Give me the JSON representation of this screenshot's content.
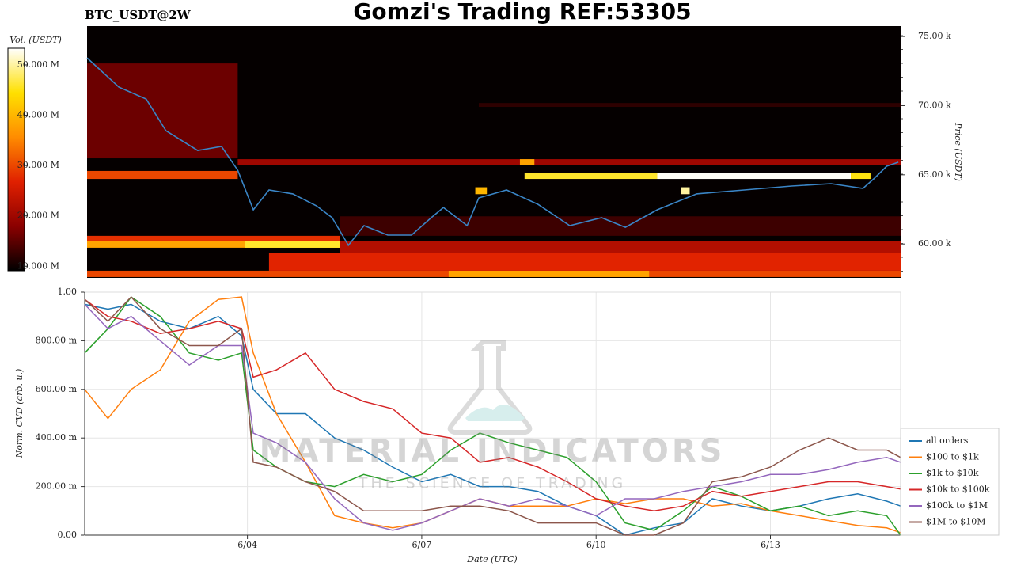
{
  "title": "Gomzi's Trading REF:53305",
  "watermark": {
    "brand": "MATERIAL INDICATORS",
    "tagline": "THE SCIENCE OF TRADING"
  },
  "chart_data": [
    {
      "type": "heatmap",
      "title": "BTC_USDT@2W",
      "ylabel": "Price (USDT)",
      "xlim": [
        1.2,
        15.24
      ],
      "ylim": [
        57550,
        75750
      ],
      "yticks": [
        {
          "value": 60000,
          "label": "60.00 k"
        },
        {
          "value": 65000,
          "label": "65.00 k"
        },
        {
          "value": 70000,
          "label": "70.00 k"
        },
        {
          "value": 75000,
          "label": "75.00 k"
        }
      ],
      "background": "#050000",
      "colorbar": {
        "label": "Vol. (USDT)",
        "lim": [
          9100000,
          53300000
        ],
        "ticks": [
          {
            "value": 10000000,
            "label": "10.000 M"
          },
          {
            "value": 20000000,
            "label": "20.000 M"
          },
          {
            "value": 30000000,
            "label": "30.000 M"
          },
          {
            "value": 40000000,
            "label": "40.000 M"
          },
          {
            "value": 50000000,
            "label": "50.000 M"
          }
        ],
        "colors": [
          "#000000",
          "#8b0000",
          "#e02000",
          "#ff8c00",
          "#ffe000",
          "#ffffff"
        ]
      },
      "cells": [
        {
          "x": [
            1.2,
            3.8
          ],
          "y": [
            66190,
            73055
          ],
          "value": 16000000
        },
        {
          "x": [
            5.57,
            15.24
          ],
          "y": [
            60590,
            62000
          ],
          "value": 13000000
        },
        {
          "x": [
            7.96,
            15.24
          ],
          "y": [
            69910,
            70190
          ],
          "value": 12000000
        },
        {
          "x": [
            1.2,
            15.24
          ],
          "y": [
            57610,
            58070
          ],
          "value": 30000000
        },
        {
          "x": [
            7.44,
            10.9
          ],
          "y": [
            57610,
            58070
          ],
          "value": 38000000
        },
        {
          "x": [
            4.34,
            15.24
          ],
          "y": [
            58070,
            59330
          ],
          "value": 27000000
        },
        {
          "x": [
            5.57,
            15.24
          ],
          "y": [
            59330,
            60190
          ],
          "value": 22000000
        },
        {
          "x": [
            1.2,
            5.57
          ],
          "y": [
            59730,
            60190
          ],
          "value": 38000000
        },
        {
          "x": [
            3.93,
            5.57
          ],
          "y": [
            59730,
            60190
          ],
          "value": 46000000
        },
        {
          "x": [
            1.2,
            5.57
          ],
          "y": [
            60190,
            60590
          ],
          "value": 28000000
        },
        {
          "x": [
            1.2,
            3.8
          ],
          "y": [
            64700,
            65280
          ],
          "value": 30000000
        },
        {
          "x": [
            3.8,
            15.24
          ],
          "y": [
            65680,
            66130
          ],
          "value": 20000000
        },
        {
          "x": [
            8.67,
            8.92
          ],
          "y": [
            65680,
            66130
          ],
          "value": 38000000
        },
        {
          "x": [
            8.75,
            11.04
          ],
          "y": [
            64700,
            65160
          ],
          "value": 46000000
        },
        {
          "x": [
            11.04,
            14.38
          ],
          "y": [
            64700,
            65160
          ],
          "value": 53000000
        },
        {
          "x": [
            14.38,
            14.72
          ],
          "y": [
            64700,
            65160
          ],
          "value": 45000000
        },
        {
          "x": [
            7.9,
            8.1
          ],
          "y": [
            63600,
            64100
          ],
          "value": 40000000
        },
        {
          "x": [
            11.45,
            11.6
          ],
          "y": [
            63600,
            64100
          ],
          "value": 50000000
        }
      ],
      "line": {
        "color": "#3a85c6",
        "x": [
          1.2,
          1.75,
          2.22,
          2.56,
          3.11,
          3.52,
          3.8,
          4.07,
          4.34,
          4.75,
          5.16,
          5.43,
          5.71,
          5.98,
          6.39,
          6.8,
          7.14,
          7.35,
          7.76,
          7.96,
          8.44,
          8.98,
          9.53,
          10.08,
          10.49,
          11.04,
          11.72,
          12.54,
          13.36,
          14.04,
          14.59,
          14.79,
          15.0,
          15.2
        ],
        "y": [
          73455,
          71340,
          70480,
          68190,
          66760,
          67050,
          65330,
          62470,
          63900,
          63620,
          62760,
          61900,
          59900,
          61330,
          60640,
          60640,
          61900,
          62640,
          61330,
          63330,
          63900,
          62870,
          61330,
          61900,
          61210,
          62470,
          63620,
          63900,
          64190,
          64360,
          64020,
          64760,
          65620,
          65910
        ]
      }
    },
    {
      "type": "line",
      "xlabel": "Date (UTC)",
      "ylabel": "Norm. CVD (arb. u.)",
      "xlim": [
        1.2,
        15.24
      ],
      "ylim": [
        0,
        1
      ],
      "grid": true,
      "legend": "right",
      "xticks": [
        {
          "value": 4,
          "label": "6/04"
        },
        {
          "value": 7,
          "label": "6/07"
        },
        {
          "value": 10,
          "label": "6/10"
        },
        {
          "value": 13,
          "label": "6/13"
        }
      ],
      "yticks": [
        {
          "value": 0,
          "label": "0.00"
        },
        {
          "value": 0.2,
          "label": "200.00 m"
        },
        {
          "value": 0.4,
          "label": "400.00 m"
        },
        {
          "value": 0.6,
          "label": "600.00 m"
        },
        {
          "value": 0.8,
          "label": "800.00 m"
        },
        {
          "value": 1,
          "label": "1.00"
        }
      ],
      "x": [
        1.2,
        1.6,
        2,
        2.5,
        3,
        3.5,
        3.9,
        4.1,
        4.5,
        5,
        5.5,
        6,
        6.5,
        7,
        7.5,
        8,
        8.5,
        9,
        9.5,
        10,
        10.5,
        11,
        11.5,
        12,
        12.5,
        13,
        13.5,
        14,
        14.5,
        15,
        15.24
      ],
      "series": [
        {
          "name": "all orders",
          "color": "#1f77b4",
          "values": [
            0.95,
            0.93,
            0.95,
            0.88,
            0.85,
            0.9,
            0.82,
            0.6,
            0.5,
            0.5,
            0.4,
            0.35,
            0.28,
            0.22,
            0.25,
            0.2,
            0.2,
            0.18,
            0.12,
            0.08,
            0.0,
            0.03,
            0.05,
            0.15,
            0.12,
            0.1,
            0.12,
            0.15,
            0.17,
            0.14,
            0.12
          ]
        },
        {
          "name": "$100 to $1k",
          "color": "#ff7f0e",
          "values": [
            0.6,
            0.48,
            0.6,
            0.68,
            0.88,
            0.97,
            0.98,
            0.75,
            0.5,
            0.3,
            0.08,
            0.05,
            0.03,
            0.05,
            0.1,
            0.15,
            0.12,
            0.12,
            0.12,
            0.15,
            0.13,
            0.15,
            0.15,
            0.12,
            0.13,
            0.1,
            0.08,
            0.06,
            0.04,
            0.03,
            0.01
          ]
        },
        {
          "name": "$1k to $10k",
          "color": "#2ca02c",
          "values": [
            0.75,
            0.85,
            0.98,
            0.9,
            0.75,
            0.72,
            0.75,
            0.35,
            0.28,
            0.22,
            0.2,
            0.25,
            0.22,
            0.25,
            0.35,
            0.42,
            0.38,
            0.35,
            0.32,
            0.22,
            0.05,
            0.02,
            0.1,
            0.2,
            0.16,
            0.1,
            0.12,
            0.08,
            0.1,
            0.08,
            0.0
          ]
        },
        {
          "name": "$10k to $100k",
          "color": "#d62728",
          "values": [
            0.97,
            0.9,
            0.88,
            0.83,
            0.85,
            0.88,
            0.85,
            0.65,
            0.68,
            0.75,
            0.6,
            0.55,
            0.52,
            0.42,
            0.4,
            0.3,
            0.32,
            0.28,
            0.22,
            0.15,
            0.12,
            0.1,
            0.12,
            0.18,
            0.16,
            0.18,
            0.2,
            0.22,
            0.22,
            0.2,
            0.19
          ]
        },
        {
          "name": "$100k to $1M",
          "color": "#9467bd",
          "values": [
            0.95,
            0.85,
            0.9,
            0.8,
            0.7,
            0.78,
            0.78,
            0.42,
            0.38,
            0.3,
            0.15,
            0.05,
            0.02,
            0.05,
            0.1,
            0.15,
            0.12,
            0.15,
            0.12,
            0.08,
            0.15,
            0.15,
            0.18,
            0.2,
            0.22,
            0.25,
            0.25,
            0.27,
            0.3,
            0.32,
            0.3
          ]
        },
        {
          "name": "$1M to $10M",
          "color": "#8c564b",
          "values": [
            0.97,
            0.88,
            0.98,
            0.85,
            0.78,
            0.78,
            0.85,
            0.3,
            0.28,
            0.22,
            0.18,
            0.1,
            0.1,
            0.1,
            0.12,
            0.12,
            0.1,
            0.05,
            0.05,
            0.05,
            0.0,
            0.0,
            0.05,
            0.22,
            0.24,
            0.28,
            0.35,
            0.4,
            0.35,
            0.35,
            0.32
          ]
        }
      ]
    }
  ]
}
